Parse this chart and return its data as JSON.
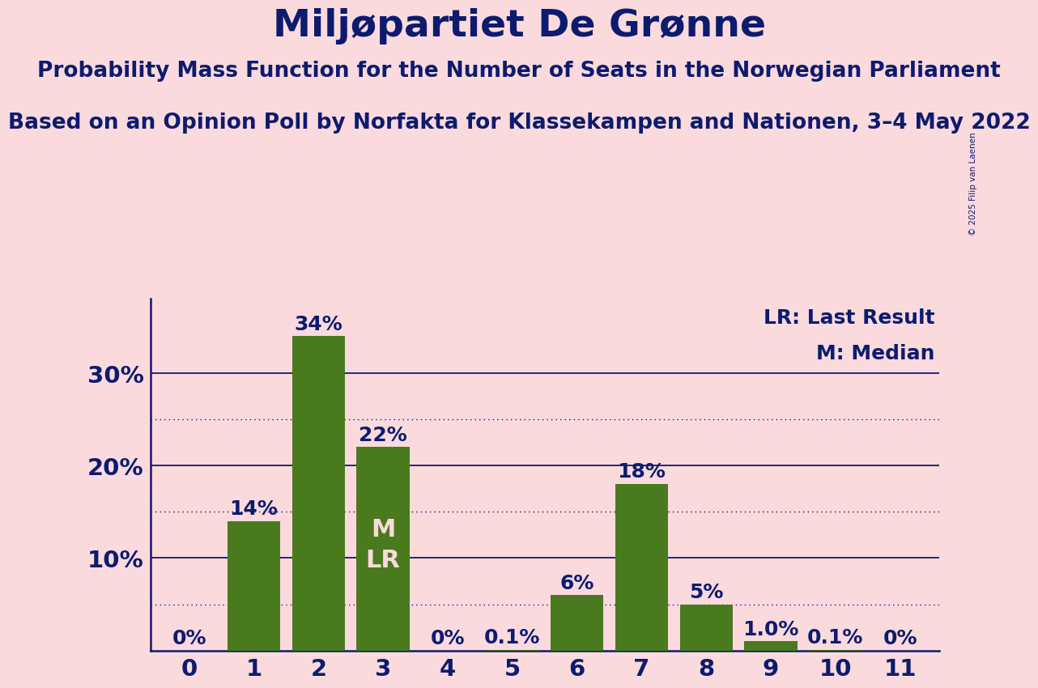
{
  "title": "Miljøpartiet De Grønne",
  "subtitle1": "Probability Mass Function for the Number of Seats in the Norwegian Parliament",
  "subtitle2": "Based on an Opinion Poll by Norfakta for Klassekampen and Nationen, 3–4 May 2022",
  "copyright": "© 2025 Filip van Laenen",
  "categories": [
    0,
    1,
    2,
    3,
    4,
    5,
    6,
    7,
    8,
    9,
    10,
    11
  ],
  "values": [
    0.0,
    14.0,
    34.0,
    22.0,
    0.0,
    0.1,
    6.0,
    18.0,
    5.0,
    1.0,
    0.1,
    0.0
  ],
  "labels": [
    "0%",
    "14%",
    "34%",
    "22%",
    "0%",
    "0.1%",
    "6%",
    "18%",
    "5%",
    "1.0%",
    "0.1%",
    "0%"
  ],
  "bar_color": "#4a7a1e",
  "background_color": "#fadadd",
  "text_color": "#0d1b6e",
  "title_fontsize": 34,
  "subtitle_fontsize": 19,
  "label_fontsize": 18,
  "axis_label_fontsize": 21,
  "legend_text": [
    "LR: Last Result",
    "M: Median"
  ],
  "median_bar": 3,
  "lr_bar": 3,
  "ymax": 38,
  "dotted_lines": [
    5,
    15,
    25
  ],
  "solid_lines": [
    10,
    20,
    30
  ],
  "mlr_fontsize": 22
}
